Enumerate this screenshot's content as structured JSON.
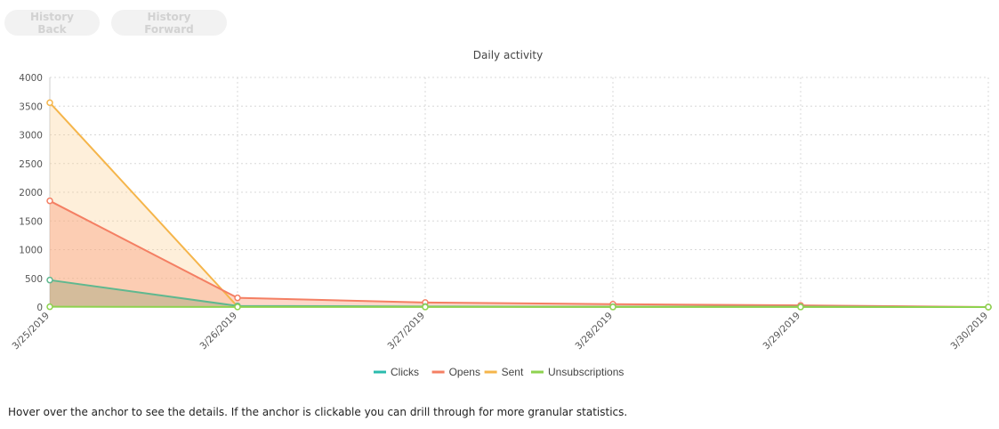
{
  "nav": {
    "back_label": "History Back",
    "forward_label": "History Forward"
  },
  "hint_text": "Hover over the anchor to see the details. If the anchor is clickable you can drill through for more granular statistics.",
  "chart_data": {
    "type": "area",
    "title": "Daily activity",
    "categories": [
      "3/25/2019",
      "3/26/2019",
      "3/27/2019",
      "3/28/2019",
      "3/29/2019",
      "3/30/2019"
    ],
    "ylim": [
      0,
      4000
    ],
    "yticks": [
      0,
      500,
      1000,
      1500,
      2000,
      2500,
      3000,
      3500,
      4000
    ],
    "grid": true,
    "legend_position": "bottom",
    "series": [
      {
        "name": "Clicks",
        "color": "#5fb88f",
        "fill": "rgba(120,150,100,0.30)",
        "values": [
          470,
          20,
          10,
          5,
          5,
          0
        ]
      },
      {
        "name": "Opens",
        "color": "#f47f63",
        "fill": "rgba(250,155,120,0.40)",
        "values": [
          1850,
          160,
          80,
          50,
          30,
          0
        ]
      },
      {
        "name": "Sent",
        "color": "#f5b54a",
        "fill": "rgba(252,210,150,0.35)",
        "values": [
          3560,
          10,
          5,
          5,
          5,
          0
        ]
      },
      {
        "name": "Unsubscriptions",
        "color": "#8ed24f",
        "fill": "rgba(142,210,79,0.20)",
        "values": [
          5,
          2,
          1,
          1,
          1,
          0
        ]
      }
    ],
    "legend_colors": {
      "Clicks": "#2bbbad",
      "Opens": "#f47f63",
      "Sent": "#f5b54a",
      "Unsubscriptions": "#8ed24f"
    }
  }
}
